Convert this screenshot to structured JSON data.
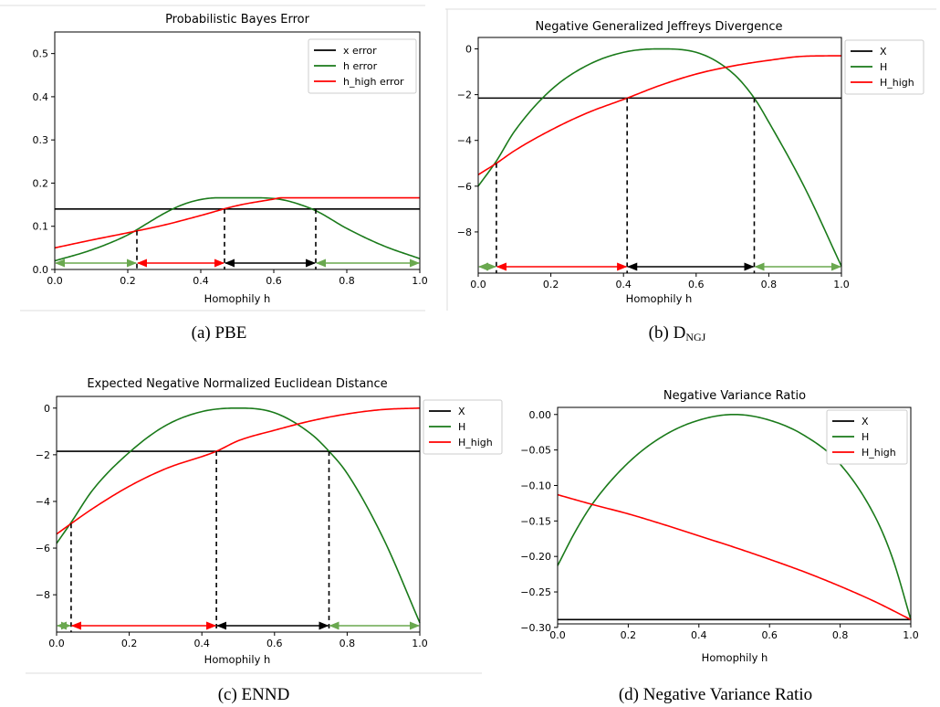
{
  "chart_data": [
    {
      "type": "line",
      "title": "Probabilistic Bayes Error",
      "xlabel": "Homophily h",
      "ylabel": "",
      "caption": "(a) PBE",
      "xlim": [
        0,
        1
      ],
      "ylim": [
        0,
        0.55
      ],
      "xticks": [
        "0.0",
        "0.2",
        "0.4",
        "0.6",
        "0.8",
        "1.0"
      ],
      "yticks": [
        "0.0",
        "0.1",
        "0.2",
        "0.3",
        "0.4",
        "0.5"
      ],
      "legend_position": "upper-right",
      "series": [
        {
          "name": "x error",
          "color": "#000000",
          "x": [
            0,
            1
          ],
          "y": [
            0.14,
            0.14
          ]
        },
        {
          "name": "h error",
          "color": "#1a7a1a",
          "x": [
            0,
            0.1,
            0.2,
            0.25,
            0.3,
            0.35,
            0.4,
            0.45,
            0.55,
            0.62,
            0.68,
            0.72,
            0.8,
            0.9,
            1.0
          ],
          "y": [
            0.02,
            0.045,
            0.08,
            0.105,
            0.13,
            0.15,
            0.162,
            0.166,
            0.166,
            0.162,
            0.148,
            0.134,
            0.095,
            0.055,
            0.025
          ]
        },
        {
          "name": "h_high error",
          "color": "#ff0000",
          "x": [
            0,
            0.1,
            0.2,
            0.3,
            0.4,
            0.5,
            0.6,
            0.62,
            0.66,
            1.0
          ],
          "y": [
            0.05,
            0.068,
            0.085,
            0.103,
            0.125,
            0.148,
            0.163,
            0.166,
            0.166,
            0.166
          ]
        }
      ],
      "markers": {
        "dashed_x": [
          0.225,
          0.465,
          0.715
        ],
        "arrows": [
          {
            "from": 0,
            "to": 0.225,
            "color": "#6aa84f"
          },
          {
            "from": 0.225,
            "to": 0.465,
            "color": "#ff0000"
          },
          {
            "from": 0.465,
            "to": 0.715,
            "color": "#000000"
          },
          {
            "from": 0.715,
            "to": 1.0,
            "color": "#6aa84f"
          }
        ]
      }
    },
    {
      "type": "line",
      "title": "Negative Generalized Jeffreys Divergence",
      "xlabel": "Homophily h",
      "ylabel": "",
      "caption": "(b) D",
      "caption_sub": "NGJ",
      "xlim": [
        0,
        1
      ],
      "ylim": [
        -9.8,
        0.5
      ],
      "xticks": [
        "0.0",
        "0.2",
        "0.4",
        "0.6",
        "0.8",
        "1.0"
      ],
      "yticks": [
        "0",
        "−2",
        "−4",
        "−6",
        "−8"
      ],
      "legend_position": "right-outside",
      "series": [
        {
          "name": "X",
          "color": "#000000",
          "x": [
            0,
            1
          ],
          "y": [
            -2.15,
            -2.15
          ]
        },
        {
          "name": "H",
          "color": "#1a7a1a",
          "x": [
            0,
            0.05,
            0.1,
            0.2,
            0.3,
            0.4,
            0.5,
            0.6,
            0.7,
            0.76,
            0.8,
            0.9,
            1.0
          ],
          "y": [
            -6.0,
            -4.9,
            -3.6,
            -1.8,
            -0.72,
            -0.15,
            0,
            -0.15,
            -1.05,
            -2.15,
            -3.2,
            -6.1,
            -9.5
          ]
        },
        {
          "name": "H_high",
          "color": "#ff0000",
          "x": [
            0,
            0.05,
            0.1,
            0.2,
            0.3,
            0.41,
            0.5,
            0.6,
            0.7,
            0.8,
            0.9,
            1.0
          ],
          "y": [
            -5.5,
            -5.0,
            -4.45,
            -3.55,
            -2.8,
            -2.15,
            -1.6,
            -1.1,
            -0.75,
            -0.5,
            -0.32,
            -0.3
          ]
        }
      ],
      "markers": {
        "dashed_x": [
          0.05,
          0.41,
          0.76
        ],
        "arrows": [
          {
            "from": 0,
            "to": 0.05,
            "color": "#6aa84f"
          },
          {
            "from": 0.05,
            "to": 0.41,
            "color": "#ff0000"
          },
          {
            "from": 0.41,
            "to": 0.76,
            "color": "#000000"
          },
          {
            "from": 0.76,
            "to": 1.0,
            "color": "#6aa84f"
          }
        ]
      }
    },
    {
      "type": "line",
      "title": "Expected Negative Normalized Euclidean Distance",
      "xlabel": "Homophily h",
      "ylabel": "",
      "caption": "(c) ENND",
      "xlim": [
        0,
        1
      ],
      "ylim": [
        -9.6,
        0.5
      ],
      "xticks": [
        "0.0",
        "0.2",
        "0.4",
        "0.6",
        "0.8",
        "1.0"
      ],
      "yticks": [
        "0",
        "−2",
        "−4",
        "−6",
        "−8"
      ],
      "legend_position": "right-outside",
      "series": [
        {
          "name": "X",
          "color": "#000000",
          "x": [
            0,
            1
          ],
          "y": [
            -1.85,
            -1.85
          ]
        },
        {
          "name": "H",
          "color": "#1a7a1a",
          "x": [
            0,
            0.04,
            0.1,
            0.2,
            0.3,
            0.4,
            0.5,
            0.6,
            0.7,
            0.75,
            0.8,
            0.9,
            1.0
          ],
          "y": [
            -5.8,
            -4.9,
            -3.5,
            -1.9,
            -0.75,
            -0.15,
            0,
            -0.2,
            -1.1,
            -1.85,
            -2.8,
            -5.6,
            -9.2
          ]
        },
        {
          "name": "H_high",
          "color": "#ff0000",
          "x": [
            0,
            0.04,
            0.1,
            0.2,
            0.3,
            0.44,
            0.5,
            0.6,
            0.7,
            0.8,
            0.9,
            1.0
          ],
          "y": [
            -5.4,
            -4.95,
            -4.3,
            -3.35,
            -2.6,
            -1.85,
            -1.4,
            -0.95,
            -0.55,
            -0.25,
            -0.06,
            0
          ]
        }
      ],
      "markers": {
        "dashed_x": [
          0.04,
          0.44,
          0.75
        ],
        "arrows": [
          {
            "from": 0,
            "to": 0.04,
            "color": "#6aa84f"
          },
          {
            "from": 0.04,
            "to": 0.44,
            "color": "#ff0000"
          },
          {
            "from": 0.44,
            "to": 0.75,
            "color": "#000000"
          },
          {
            "from": 0.75,
            "to": 1.0,
            "color": "#6aa84f"
          }
        ]
      }
    },
    {
      "type": "line",
      "title": "Negative Variance Ratio",
      "xlabel": "Homophily h",
      "ylabel": "",
      "caption": "(d) Negative Variance Ratio",
      "xlim": [
        0,
        1
      ],
      "ylim": [
        -0.295,
        0.01
      ],
      "xticks": [
        "0.0",
        "0.2",
        "0.4",
        "0.6",
        "0.8",
        "1.0"
      ],
      "yticks": [
        "0.00",
        "−0.05",
        "−0.10",
        "−0.15",
        "−0.20",
        "−0.25",
        "−0.30"
      ],
      "legend_position": "upper-right",
      "series": [
        {
          "name": "X",
          "color": "#000000",
          "x": [
            0,
            1
          ],
          "y": [
            -0.289,
            -0.289
          ]
        },
        {
          "name": "H",
          "color": "#1a7a1a",
          "x": [
            0,
            0.05,
            0.1,
            0.2,
            0.3,
            0.4,
            0.5,
            0.6,
            0.7,
            0.8,
            0.9,
            0.95,
            1.0
          ],
          "y": [
            -0.213,
            -0.165,
            -0.125,
            -0.068,
            -0.03,
            -0.008,
            0,
            -0.008,
            -0.03,
            -0.07,
            -0.145,
            -0.205,
            -0.289
          ]
        },
        {
          "name": "H_high",
          "color": "#ff0000",
          "x": [
            0,
            0.1,
            0.2,
            0.3,
            0.4,
            0.5,
            0.6,
            0.7,
            0.8,
            0.9,
            1.0
          ],
          "y": [
            -0.113,
            -0.127,
            -0.14,
            -0.155,
            -0.171,
            -0.187,
            -0.204,
            -0.222,
            -0.242,
            -0.264,
            -0.289
          ]
        }
      ],
      "markers": {
        "dashed_x": [],
        "arrows": []
      }
    }
  ]
}
